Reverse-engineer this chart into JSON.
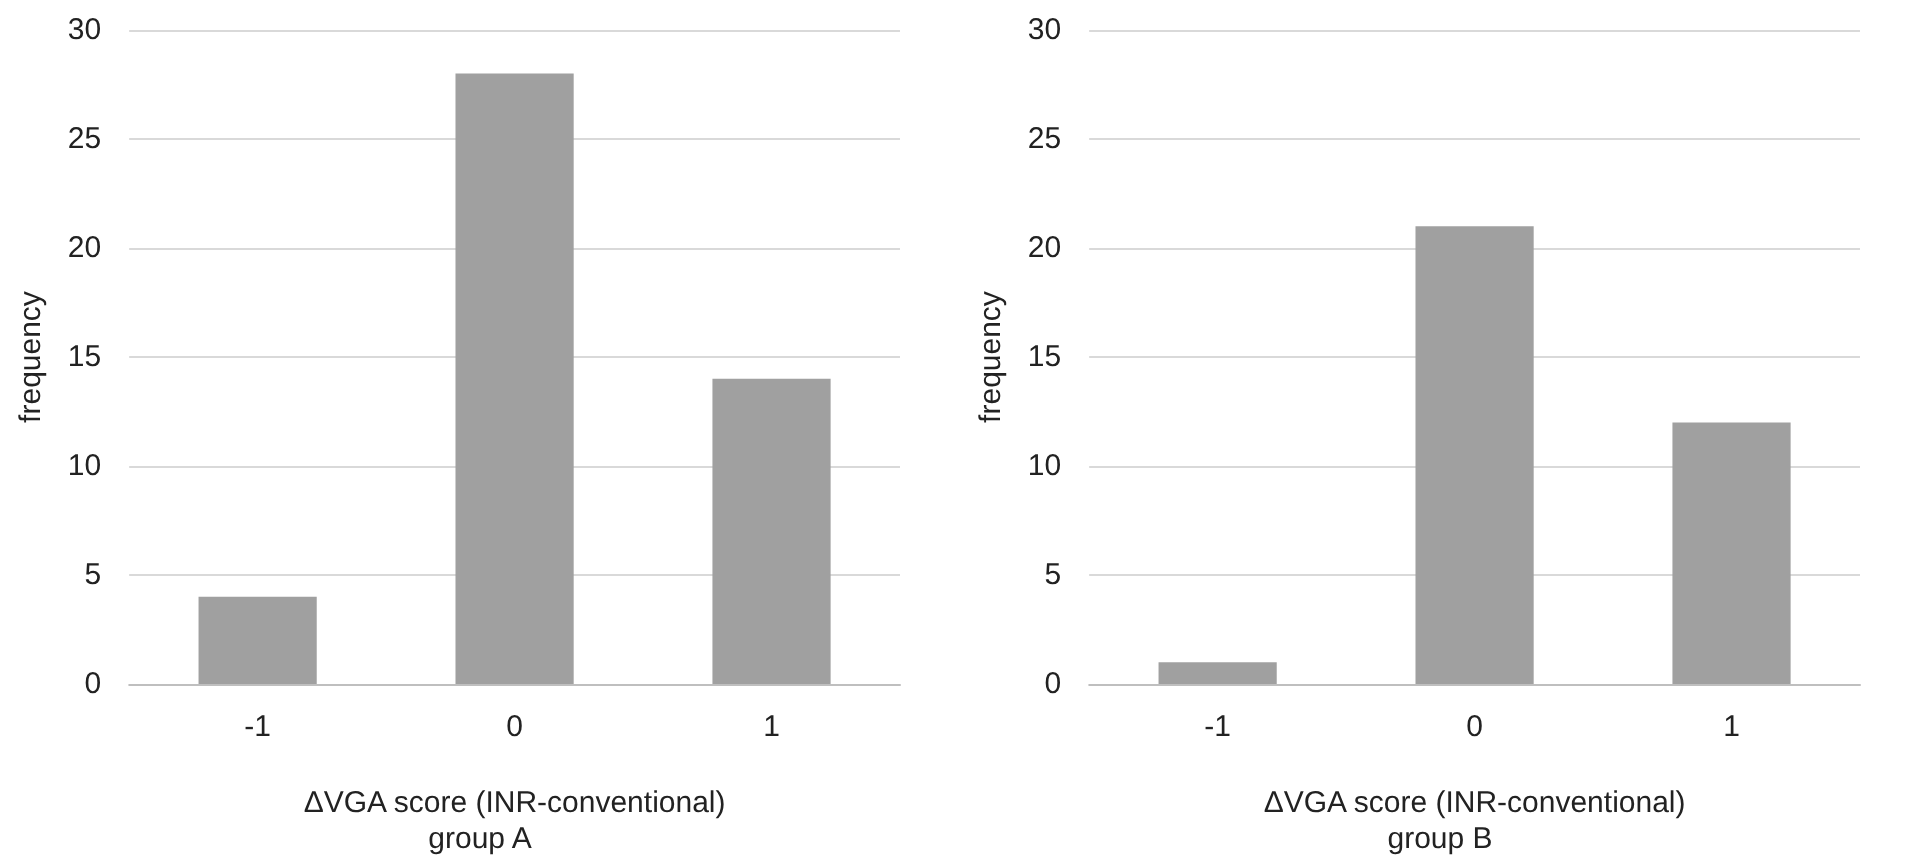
{
  "chart_data": [
    {
      "type": "bar",
      "title": "group A",
      "xlabel": "ΔVGA score (INR-conventional)",
      "ylabel": "frequency",
      "categories": [
        "-1",
        "0",
        "1"
      ],
      "values": [
        4,
        28,
        14
      ],
      "color": "#a0a0a0",
      "ylim": [
        0,
        30
      ],
      "yticks": [
        0,
        5,
        10,
        15,
        20,
        25,
        30
      ],
      "grid": "y"
    },
    {
      "type": "bar",
      "title": "group B",
      "xlabel": "ΔVGA score (INR-conventional)",
      "ylabel": "frequency",
      "categories": [
        "-1",
        "0",
        "1"
      ],
      "values": [
        1,
        21,
        12
      ],
      "color": "#a0a0a0",
      "ylim": [
        0,
        30
      ],
      "yticks": [
        0,
        5,
        10,
        15,
        20,
        25,
        30
      ],
      "grid": "y"
    }
  ]
}
